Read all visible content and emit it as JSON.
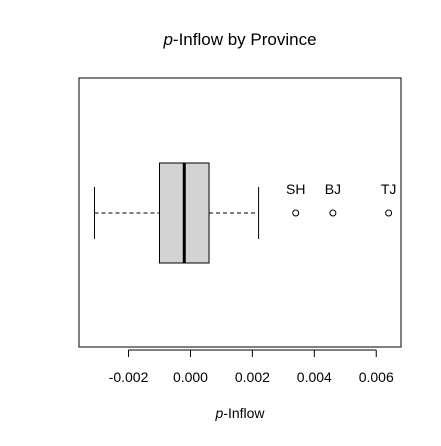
{
  "chart_data": {
    "type": "boxplot",
    "orientation": "horizontal",
    "title_italic": "p",
    "title_rest": "-Inflow by Province",
    "xlabel_italic": "p",
    "xlabel_rest": "-Inflow",
    "ylabel": "",
    "xlim": [
      -0.0036,
      0.0068
    ],
    "x_ticks": [
      -0.002,
      0.0,
      0.002,
      0.004,
      0.006
    ],
    "x_tick_labels": [
      "-0.002",
      "0.000",
      "0.002",
      "0.004",
      "0.006"
    ],
    "box": {
      "whisker_low": -0.0031,
      "q1": -0.001,
      "median": -0.0002,
      "q3": 0.0006,
      "whisker_high": 0.0022
    },
    "outliers": [
      {
        "label": "SH",
        "x": 0.0034
      },
      {
        "label": "BJ",
        "x": 0.0046
      },
      {
        "label": "TJ",
        "x": 0.0064
      }
    ],
    "colors": {
      "box_fill": "#d3d3d3",
      "stroke": "#000000",
      "background": "#ffffff"
    },
    "grid": false
  }
}
